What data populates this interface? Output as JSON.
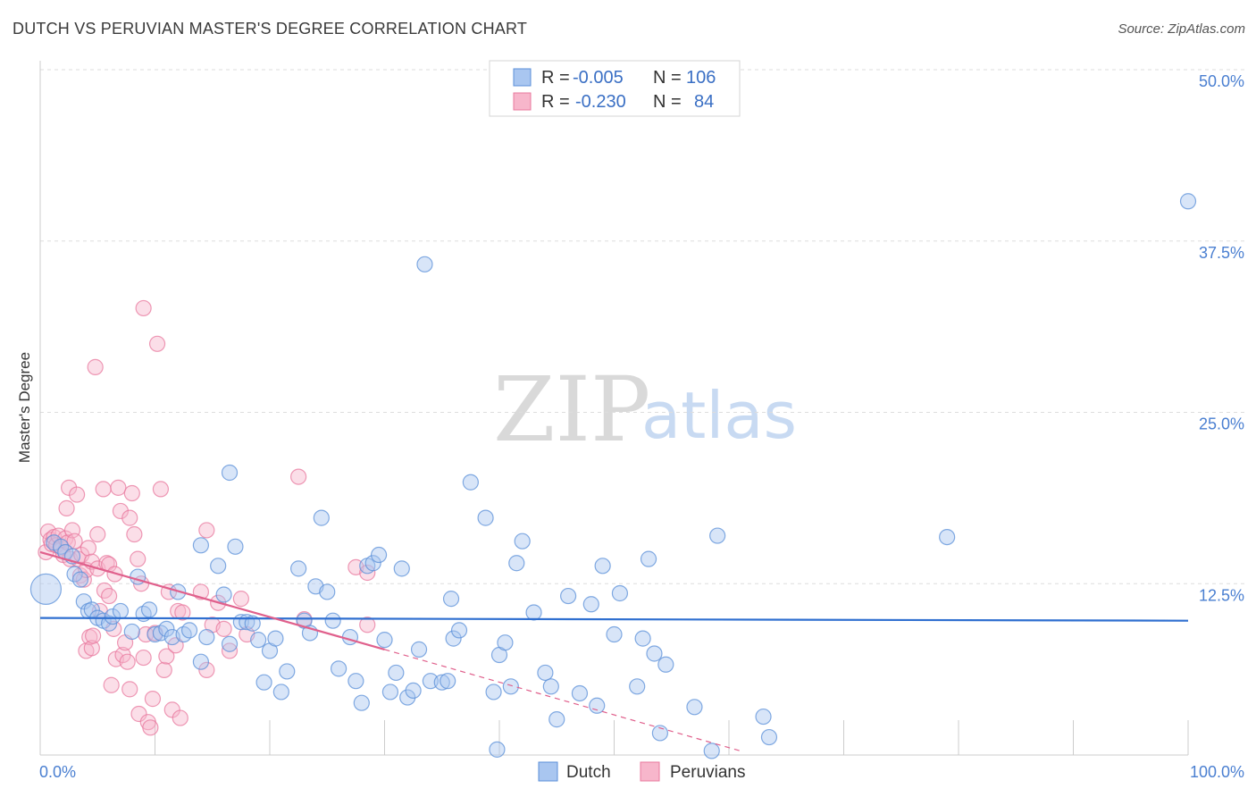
{
  "title": "DUTCH VS PERUVIAN MASTER'S DEGREE CORRELATION CHART",
  "source": "Source: ZipAtlas.com",
  "watermark": {
    "zip": "ZIP",
    "atlas": "atlas"
  },
  "legend": {
    "rows": [
      {
        "r_label": "R =",
        "r_value": "-0.005",
        "n_label": "N =",
        "n_value": "106"
      },
      {
        "r_label": "R =",
        "r_value": "-0.230",
        "n_label": "N =",
        "n_value": "84"
      }
    ]
  },
  "bottom_legend": [
    "Dutch",
    "Peruvians"
  ],
  "colors": {
    "dutch_fill": "#a9c6f0",
    "dutch_stroke": "#5a8fd8",
    "dutch_line": "#2f6fd0",
    "peru_fill": "#f7b6cb",
    "peru_stroke": "#e8789e",
    "peru_line": "#e0608c",
    "grid": "#dddddd",
    "axis_text": "#4a7fd1"
  },
  "chart_data": {
    "type": "scatter",
    "xlabel": "",
    "ylabel": "Master's Degree",
    "xlim": [
      0,
      100
    ],
    "ylim": [
      0,
      50
    ],
    "x_tick_labels": [
      "0.0%",
      "100.0%"
    ],
    "y_ticks": [
      12.5,
      25.0,
      37.5,
      50.0
    ],
    "y_tick_labels": [
      "12.5%",
      "25.0%",
      "37.5%",
      "50.0%"
    ],
    "series": [
      {
        "name": "Dutch",
        "trend": {
          "x0": 0,
          "y0": 10.0,
          "x1": 100,
          "y1": 9.8
        },
        "points": [
          [
            0.5,
            12.1
          ],
          [
            1.2,
            15.5
          ],
          [
            1.8,
            15.2
          ],
          [
            2.2,
            14.8
          ],
          [
            2.8,
            14.5
          ],
          [
            3.0,
            13.2
          ],
          [
            3.5,
            12.8
          ],
          [
            3.8,
            11.2
          ],
          [
            4.2,
            10.5
          ],
          [
            4.5,
            10.6
          ],
          [
            5.0,
            10.0
          ],
          [
            5.5,
            9.8
          ],
          [
            6.0,
            9.6
          ],
          [
            6.3,
            10.1
          ],
          [
            7.0,
            10.5
          ],
          [
            8.5,
            13.0
          ],
          [
            8.0,
            9.0
          ],
          [
            9.0,
            10.3
          ],
          [
            9.5,
            10.6
          ],
          [
            10.0,
            8.8
          ],
          [
            10.5,
            8.9
          ],
          [
            11.0,
            9.2
          ],
          [
            11.5,
            8.6
          ],
          [
            12.0,
            11.9
          ],
          [
            12.5,
            8.8
          ],
          [
            13.0,
            9.1
          ],
          [
            14.0,
            6.8
          ],
          [
            14.0,
            15.3
          ],
          [
            14.5,
            8.6
          ],
          [
            15.5,
            13.8
          ],
          [
            16.0,
            11.7
          ],
          [
            16.5,
            8.1
          ],
          [
            16.5,
            20.6
          ],
          [
            17.0,
            15.2
          ],
          [
            17.5,
            9.7
          ],
          [
            18.0,
            9.7
          ],
          [
            18.5,
            9.6
          ],
          [
            19.0,
            8.4
          ],
          [
            19.5,
            5.3
          ],
          [
            20.0,
            7.6
          ],
          [
            20.5,
            8.5
          ],
          [
            21.0,
            4.6
          ],
          [
            21.5,
            6.1
          ],
          [
            22.5,
            13.6
          ],
          [
            23.0,
            9.8
          ],
          [
            23.5,
            8.9
          ],
          [
            24.0,
            12.3
          ],
          [
            24.5,
            17.3
          ],
          [
            25.0,
            11.9
          ],
          [
            25.5,
            9.8
          ],
          [
            26.0,
            6.3
          ],
          [
            27.0,
            8.6
          ],
          [
            27.5,
            5.4
          ],
          [
            28.0,
            3.8
          ],
          [
            28.5,
            13.8
          ],
          [
            29.0,
            14.0
          ],
          [
            29.5,
            14.6
          ],
          [
            30.0,
            8.4
          ],
          [
            30.5,
            4.6
          ],
          [
            31.0,
            6.0
          ],
          [
            31.5,
            13.6
          ],
          [
            32.0,
            4.2
          ],
          [
            32.5,
            4.7
          ],
          [
            33.0,
            7.7
          ],
          [
            33.5,
            35.8
          ],
          [
            34.0,
            5.4
          ],
          [
            35.0,
            5.3
          ],
          [
            35.5,
            5.4
          ],
          [
            35.8,
            11.4
          ],
          [
            36.0,
            8.5
          ],
          [
            36.5,
            9.1
          ],
          [
            37.5,
            19.9
          ],
          [
            38.8,
            17.3
          ],
          [
            39.5,
            4.6
          ],
          [
            39.8,
            0.4
          ],
          [
            40.0,
            7.3
          ],
          [
            40.5,
            8.2
          ],
          [
            41.0,
            5.0
          ],
          [
            41.5,
            14.0
          ],
          [
            42.0,
            15.6
          ],
          [
            43.0,
            10.4
          ],
          [
            44.0,
            6.0
          ],
          [
            44.5,
            5.0
          ],
          [
            45.0,
            2.6
          ],
          [
            46.0,
            11.6
          ],
          [
            47.0,
            4.5
          ],
          [
            48.0,
            11.0
          ],
          [
            48.5,
            3.6
          ],
          [
            49.0,
            13.8
          ],
          [
            50.0,
            8.8
          ],
          [
            50.5,
            11.8
          ],
          [
            52.0,
            5.0
          ],
          [
            52.5,
            8.5
          ],
          [
            53.0,
            14.3
          ],
          [
            53.5,
            7.4
          ],
          [
            54.0,
            1.6
          ],
          [
            54.5,
            6.6
          ],
          [
            57.0,
            3.5
          ],
          [
            58.5,
            0.3
          ],
          [
            59.0,
            16.0
          ],
          [
            63.0,
            2.8
          ],
          [
            63.5,
            1.3
          ],
          [
            79.0,
            15.9
          ],
          [
            100.0,
            40.4
          ]
        ]
      },
      {
        "name": "Peruvians",
        "trend": {
          "x0": 0,
          "y0": 14.8,
          "x1": 30,
          "y1": 7.7,
          "dash_x1": 61,
          "dash_y1": 0.3
        },
        "points": [
          [
            0.5,
            14.8
          ],
          [
            0.7,
            16.3
          ],
          [
            0.9,
            15.7
          ],
          [
            1.0,
            15.4
          ],
          [
            1.2,
            15.9
          ],
          [
            1.4,
            15.3
          ],
          [
            1.6,
            16.0
          ],
          [
            1.8,
            15.1
          ],
          [
            2.0,
            14.6
          ],
          [
            2.2,
            15.8
          ],
          [
            2.3,
            18.0
          ],
          [
            2.4,
            15.5
          ],
          [
            2.6,
            14.3
          ],
          [
            2.8,
            16.4
          ],
          [
            2.5,
            19.5
          ],
          [
            3.0,
            15.6
          ],
          [
            3.2,
            19.0
          ],
          [
            3.3,
            14.3
          ],
          [
            3.5,
            13.1
          ],
          [
            3.6,
            14.6
          ],
          [
            3.8,
            12.8
          ],
          [
            4.0,
            13.5
          ],
          [
            4.0,
            7.6
          ],
          [
            4.2,
            15.1
          ],
          [
            4.3,
            8.6
          ],
          [
            4.5,
            7.8
          ],
          [
            4.5,
            14.1
          ],
          [
            4.6,
            8.7
          ],
          [
            4.8,
            28.3
          ],
          [
            5.0,
            16.1
          ],
          [
            5.0,
            13.6
          ],
          [
            5.2,
            10.5
          ],
          [
            5.5,
            19.4
          ],
          [
            5.6,
            12.0
          ],
          [
            5.8,
            14.0
          ],
          [
            6.0,
            13.9
          ],
          [
            6.0,
            11.6
          ],
          [
            6.2,
            5.1
          ],
          [
            6.4,
            9.2
          ],
          [
            6.5,
            13.2
          ],
          [
            6.6,
            7.0
          ],
          [
            6.8,
            19.5
          ],
          [
            7.0,
            17.8
          ],
          [
            7.2,
            7.3
          ],
          [
            7.4,
            8.2
          ],
          [
            7.6,
            6.8
          ],
          [
            7.8,
            4.8
          ],
          [
            7.8,
            17.3
          ],
          [
            8.0,
            19.1
          ],
          [
            8.2,
            16.1
          ],
          [
            8.5,
            14.3
          ],
          [
            8.6,
            3.0
          ],
          [
            8.8,
            12.5
          ],
          [
            9.0,
            7.1
          ],
          [
            9.0,
            32.6
          ],
          [
            9.2,
            8.8
          ],
          [
            9.4,
            2.4
          ],
          [
            9.6,
            2.0
          ],
          [
            9.8,
            4.1
          ],
          [
            10.0,
            8.9
          ],
          [
            10.2,
            30.0
          ],
          [
            10.5,
            19.4
          ],
          [
            10.8,
            6.2
          ],
          [
            11.0,
            7.2
          ],
          [
            11.2,
            11.9
          ],
          [
            11.5,
            3.3
          ],
          [
            11.8,
            8.0
          ],
          [
            12.0,
            10.5
          ],
          [
            12.2,
            2.7
          ],
          [
            12.4,
            10.4
          ],
          [
            14.0,
            11.9
          ],
          [
            14.5,
            6.2
          ],
          [
            14.5,
            16.4
          ],
          [
            15.0,
            9.5
          ],
          [
            15.5,
            11.1
          ],
          [
            16.0,
            9.2
          ],
          [
            16.5,
            7.6
          ],
          [
            17.5,
            11.4
          ],
          [
            18.0,
            8.8
          ],
          [
            22.5,
            20.3
          ],
          [
            23.0,
            9.9
          ],
          [
            27.5,
            13.7
          ],
          [
            28.5,
            13.3
          ],
          [
            28.5,
            9.5
          ]
        ]
      }
    ]
  }
}
